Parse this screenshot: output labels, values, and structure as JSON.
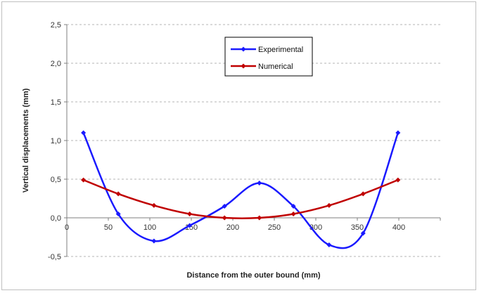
{
  "chart_data": {
    "type": "line",
    "title": "",
    "xlabel": "Distance from the outer bound (mm)",
    "ylabel": "Vertical displacements (mm)",
    "xlim": [
      0,
      450
    ],
    "ylim": [
      -0.5,
      2.5
    ],
    "x_ticks": [
      0,
      50,
      100,
      150,
      200,
      250,
      300,
      350,
      400
    ],
    "x_tick_labels": [
      "0",
      "50",
      "100",
      "150",
      "200",
      "250",
      "300",
      "350",
      "400"
    ],
    "y_ticks": [
      -0.5,
      0,
      0.5,
      1,
      1.5,
      2,
      2.5
    ],
    "y_tick_labels": [
      "-0,5",
      "0,0",
      "0,5",
      "1,0",
      "1,5",
      "2,0",
      "2,5"
    ],
    "grid": "horizontal-dashed",
    "legend_position": "top-center",
    "series": [
      {
        "name": "Experimental",
        "color": "#1a1aff",
        "marker": "diamond",
        "smooth": true,
        "x": [
          20,
          62,
          105,
          148,
          190,
          232,
          273,
          316,
          357,
          399
        ],
        "y": [
          1.1,
          0.05,
          -0.3,
          -0.1,
          0.15,
          0.45,
          0.15,
          -0.35,
          -0.2,
          1.1
        ]
      },
      {
        "name": "Numerical",
        "color": "#c00000",
        "marker": "diamond",
        "smooth": true,
        "x": [
          20,
          62,
          105,
          148,
          190,
          232,
          273,
          316,
          357,
          399
        ],
        "y": [
          0.49,
          0.31,
          0.16,
          0.05,
          0.0,
          0.0,
          0.05,
          0.16,
          0.31,
          0.49
        ]
      }
    ]
  }
}
